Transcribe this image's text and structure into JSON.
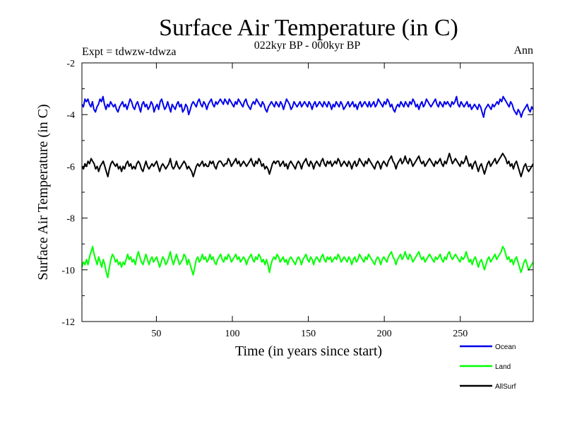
{
  "chart_data": {
    "type": "line",
    "title": "Surface Air Temperature (in C)",
    "subtitle": "022kyr BP - 000kyr BP",
    "left_note": "Expt = tdwzw-tdwza",
    "right_note": "Ann",
    "xlabel": "Time (in years since start)",
    "ylabel": "Surface Air Temperature (in C)",
    "xlim": [
      1,
      298
    ],
    "ylim": [
      -12,
      -2
    ],
    "x_ticks": [
      50,
      100,
      150,
      200,
      250
    ],
    "y_ticks": [
      -2,
      -4,
      -6,
      -8,
      -10,
      -12
    ],
    "grid": false,
    "legend_position": "bottom-right",
    "x": {
      "start": 1,
      "end": 298
    },
    "series": [
      {
        "name": "Ocean",
        "color": "#0000ee",
        "values": [
          -3.6,
          -3.7,
          -3.4,
          -3.5,
          -3.4,
          -3.6,
          -3.7,
          -3.5,
          -3.8,
          -3.9,
          -3.7,
          -3.6,
          -3.4,
          -3.5,
          -3.3,
          -3.6,
          -3.8,
          -3.6,
          -3.7,
          -3.5,
          -3.6,
          -3.7,
          -3.6,
          -3.8,
          -3.9,
          -3.7,
          -3.6,
          -3.5,
          -3.7,
          -3.6,
          -3.8,
          -3.6,
          -3.4,
          -3.5,
          -3.7,
          -3.8,
          -3.6,
          -3.5,
          -3.7,
          -3.9,
          -3.6,
          -3.5,
          -3.7,
          -3.6,
          -3.8,
          -3.7,
          -3.5,
          -3.6,
          -3.9,
          -3.7,
          -3.6,
          -3.8,
          -3.5,
          -3.4,
          -3.6,
          -3.8,
          -3.7,
          -3.5,
          -3.7,
          -3.9,
          -3.6,
          -3.7,
          -3.8,
          -3.6,
          -3.5,
          -3.7,
          -3.6,
          -3.9,
          -3.8,
          -3.6,
          -3.7,
          -4.0,
          -3.8,
          -3.6,
          -3.5,
          -3.6,
          -3.7,
          -3.5,
          -3.4,
          -3.6,
          -3.7,
          -3.5,
          -3.6,
          -3.8,
          -3.6,
          -3.5,
          -3.4,
          -3.6,
          -3.7,
          -3.5,
          -3.6,
          -3.5,
          -3.4,
          -3.5,
          -3.6,
          -3.4,
          -3.5,
          -3.6,
          -3.4,
          -3.5,
          -3.6,
          -3.7,
          -3.5,
          -3.6,
          -3.4,
          -3.5,
          -3.6,
          -3.7,
          -3.5,
          -3.4,
          -3.6,
          -3.7,
          -3.8,
          -3.6,
          -3.5,
          -3.6,
          -3.4,
          -3.5,
          -3.6,
          -3.7,
          -3.5,
          -3.6,
          -3.8,
          -3.9,
          -3.7,
          -3.6,
          -3.5,
          -3.6,
          -3.7,
          -3.5,
          -3.6,
          -3.7,
          -3.5,
          -3.6,
          -3.8,
          -3.6,
          -3.4,
          -3.5,
          -3.6,
          -3.8,
          -3.7,
          -3.5,
          -3.6,
          -3.7,
          -3.6,
          -3.5,
          -3.7,
          -3.6,
          -3.5,
          -3.6,
          -3.7,
          -3.5,
          -3.6,
          -3.8,
          -3.6,
          -3.5,
          -3.7,
          -3.6,
          -3.5,
          -3.6,
          -3.7,
          -3.5,
          -3.6,
          -3.7,
          -3.5,
          -3.6,
          -3.8,
          -3.6,
          -3.7,
          -3.5,
          -3.6,
          -3.7,
          -3.5,
          -3.6,
          -3.8,
          -3.7,
          -3.6,
          -3.5,
          -3.7,
          -3.6,
          -3.5,
          -3.7,
          -3.6,
          -3.8,
          -3.6,
          -3.5,
          -3.7,
          -3.6,
          -3.5,
          -3.6,
          -3.7,
          -3.5,
          -3.7,
          -3.6,
          -3.5,
          -3.7,
          -3.6,
          -3.4,
          -3.5,
          -3.6,
          -3.7,
          -3.5,
          -3.6,
          -3.4,
          -3.5,
          -3.7,
          -3.6,
          -3.8,
          -3.9,
          -3.7,
          -3.6,
          -3.7,
          -3.5,
          -3.6,
          -3.7,
          -3.5,
          -3.6,
          -3.7,
          -3.5,
          -3.6,
          -3.4,
          -3.5,
          -3.7,
          -3.6,
          -3.8,
          -3.6,
          -3.5,
          -3.7,
          -3.6,
          -3.4,
          -3.5,
          -3.6,
          -3.7,
          -3.6,
          -3.5,
          -3.4,
          -3.6,
          -3.7,
          -3.5,
          -3.6,
          -3.7,
          -3.5,
          -3.6,
          -3.5,
          -3.6,
          -3.7,
          -3.5,
          -3.6,
          -3.5,
          -3.3,
          -3.6,
          -3.7,
          -3.5,
          -3.6,
          -3.7,
          -3.6,
          -3.5,
          -3.7,
          -3.6,
          -3.8,
          -3.7,
          -3.6,
          -3.7,
          -3.8,
          -3.6,
          -3.7,
          -3.9,
          -4.1,
          -3.8,
          -3.7,
          -3.6,
          -3.7,
          -3.8,
          -3.6,
          -3.7,
          -3.6,
          -3.5,
          -3.6,
          -3.4,
          -3.5,
          -3.3,
          -3.4,
          -3.5,
          -3.6,
          -3.7,
          -3.5,
          -3.6,
          -3.8,
          -3.9,
          -4.0,
          -3.8,
          -3.9,
          -4.1,
          -3.9,
          -3.8,
          -3.7,
          -3.6,
          -3.8,
          -3.9,
          -3.7,
          -3.8
        ]
      },
      {
        "name": "Land",
        "color": "#00ff00",
        "values": [
          -9.9,
          -9.7,
          -9.8,
          -9.6,
          -9.8,
          -9.5,
          -9.3,
          -9.1,
          -9.4,
          -9.6,
          -9.8,
          -9.5,
          -9.7,
          -9.9,
          -9.6,
          -9.8,
          -10.1,
          -10.3,
          -9.9,
          -9.6,
          -9.4,
          -9.5,
          -9.7,
          -9.6,
          -9.8,
          -9.7,
          -9.9,
          -9.7,
          -9.8,
          -9.6,
          -9.4,
          -9.6,
          -9.5,
          -9.7,
          -9.6,
          -9.8,
          -9.5,
          -9.3,
          -9.5,
          -9.7,
          -9.8,
          -9.6,
          -9.4,
          -9.6,
          -9.8,
          -9.6,
          -9.5,
          -9.7,
          -9.6,
          -9.5,
          -9.7,
          -9.9,
          -9.7,
          -9.5,
          -9.6,
          -9.8,
          -9.7,
          -9.5,
          -9.3,
          -9.6,
          -9.8,
          -9.6,
          -9.4,
          -9.6,
          -9.8,
          -9.7,
          -9.6,
          -9.4,
          -9.5,
          -9.8,
          -9.6,
          -9.8,
          -10.0,
          -10.2,
          -9.9,
          -9.6,
          -9.5,
          -9.7,
          -9.6,
          -9.4,
          -9.6,
          -9.5,
          -9.7,
          -9.6,
          -9.4,
          -9.6,
          -9.5,
          -9.7,
          -9.8,
          -9.6,
          -9.5,
          -9.4,
          -9.6,
          -9.7,
          -9.5,
          -9.6,
          -9.4,
          -9.5,
          -9.7,
          -9.6,
          -9.5,
          -9.4,
          -9.6,
          -9.5,
          -9.7,
          -9.6,
          -9.5,
          -9.6,
          -9.8,
          -9.6,
          -9.5,
          -9.4,
          -9.6,
          -9.7,
          -9.5,
          -9.6,
          -9.4,
          -9.5,
          -9.7,
          -9.6,
          -9.8,
          -9.6,
          -9.8,
          -10.1,
          -9.8,
          -9.6,
          -9.5,
          -9.6,
          -9.4,
          -9.5,
          -9.7,
          -9.6,
          -9.5,
          -9.7,
          -9.6,
          -9.8,
          -9.6,
          -9.5,
          -9.6,
          -9.7,
          -9.8,
          -9.6,
          -9.5,
          -9.6,
          -9.8,
          -9.6,
          -9.5,
          -9.4,
          -9.6,
          -9.7,
          -9.5,
          -9.6,
          -9.8,
          -9.6,
          -9.5,
          -9.6,
          -9.7,
          -9.5,
          -9.4,
          -9.6,
          -9.7,
          -9.5,
          -9.6,
          -9.5,
          -9.7,
          -9.6,
          -9.5,
          -9.6,
          -9.4,
          -9.5,
          -9.7,
          -9.6,
          -9.5,
          -9.6,
          -9.7,
          -9.5,
          -9.6,
          -9.8,
          -9.6,
          -9.5,
          -9.7,
          -9.6,
          -9.4,
          -9.5,
          -9.6,
          -9.7,
          -9.5,
          -9.6,
          -9.4,
          -9.5,
          -9.6,
          -9.7,
          -9.8,
          -9.6,
          -9.5,
          -9.6,
          -9.8,
          -9.6,
          -9.5,
          -9.6,
          -9.7,
          -9.5,
          -9.4,
          -9.3,
          -9.5,
          -9.6,
          -9.8,
          -9.6,
          -9.5,
          -9.4,
          -9.6,
          -9.5,
          -9.3,
          -9.5,
          -9.6,
          -9.4,
          -9.5,
          -9.7,
          -9.6,
          -9.5,
          -9.4,
          -9.3,
          -9.5,
          -9.6,
          -9.5,
          -9.7,
          -9.6,
          -9.5,
          -9.4,
          -9.5,
          -9.6,
          -9.7,
          -9.5,
          -9.6,
          -9.5,
          -9.4,
          -9.6,
          -9.7,
          -9.5,
          -9.6,
          -9.4,
          -9.3,
          -9.5,
          -9.6,
          -9.5,
          -9.4,
          -9.5,
          -9.6,
          -9.7,
          -9.5,
          -9.6,
          -9.5,
          -9.3,
          -9.5,
          -9.7,
          -9.6,
          -9.8,
          -9.6,
          -9.5,
          -9.7,
          -9.9,
          -9.7,
          -9.6,
          -9.8,
          -10.0,
          -9.8,
          -9.6,
          -9.5,
          -9.7,
          -9.6,
          -9.5,
          -9.4,
          -9.6,
          -9.5,
          -9.4,
          -9.3,
          -9.1,
          -9.2,
          -9.4,
          -9.6,
          -9.5,
          -9.7,
          -9.6,
          -9.8,
          -9.6,
          -9.5,
          -9.7,
          -9.9,
          -10.1,
          -9.9,
          -9.7,
          -9.6,
          -9.8,
          -10.0,
          -9.9,
          -9.8,
          -9.7
        ]
      },
      {
        "name": "AllSurf",
        "color": "#000000",
        "values": [
          -6.0,
          -6.1,
          -5.9,
          -6.0,
          -5.8,
          -5.9,
          -5.7,
          -5.8,
          -5.9,
          -6.1,
          -6.0,
          -6.2,
          -6.0,
          -5.9,
          -5.8,
          -6.0,
          -6.2,
          -6.4,
          -6.1,
          -5.9,
          -5.8,
          -5.9,
          -6.0,
          -5.9,
          -6.1,
          -6.0,
          -6.2,
          -6.0,
          -6.1,
          -5.9,
          -5.8,
          -6.0,
          -5.9,
          -6.1,
          -6.0,
          -6.1,
          -5.9,
          -5.8,
          -5.9,
          -6.1,
          -6.2,
          -6.0,
          -5.8,
          -6.0,
          -6.1,
          -6.0,
          -5.9,
          -6.0,
          -5.9,
          -5.8,
          -6.0,
          -6.2,
          -6.0,
          -5.9,
          -6.0,
          -6.1,
          -6.0,
          -5.9,
          -5.7,
          -6.0,
          -6.1,
          -6.0,
          -5.8,
          -6.0,
          -6.1,
          -6.0,
          -5.9,
          -5.8,
          -5.9,
          -6.1,
          -6.0,
          -6.1,
          -6.2,
          -6.4,
          -6.2,
          -6.0,
          -5.9,
          -6.0,
          -5.9,
          -5.8,
          -6.0,
          -5.9,
          -6.0,
          -6.0,
          -5.8,
          -5.9,
          -5.8,
          -6.0,
          -6.1,
          -5.9,
          -5.8,
          -5.8,
          -5.9,
          -6.0,
          -5.9,
          -5.9,
          -5.7,
          -5.8,
          -6.0,
          -5.9,
          -5.8,
          -5.7,
          -5.9,
          -5.8,
          -6.0,
          -5.9,
          -5.8,
          -5.9,
          -6.0,
          -5.9,
          -5.8,
          -5.7,
          -5.9,
          -6.0,
          -5.8,
          -5.9,
          -5.7,
          -5.8,
          -6.0,
          -5.9,
          -6.1,
          -6.0,
          -6.1,
          -6.3,
          -6.1,
          -5.9,
          -5.8,
          -5.9,
          -5.8,
          -5.8,
          -6.0,
          -5.9,
          -5.8,
          -6.0,
          -5.9,
          -6.1,
          -5.9,
          -5.8,
          -5.9,
          -6.0,
          -6.1,
          -5.9,
          -5.8,
          -5.9,
          -6.1,
          -5.9,
          -5.8,
          -5.7,
          -5.9,
          -6.0,
          -5.8,
          -5.9,
          -6.1,
          -5.9,
          -5.8,
          -5.9,
          -6.0,
          -5.8,
          -5.7,
          -5.9,
          -6.0,
          -5.8,
          -5.9,
          -5.8,
          -6.0,
          -5.9,
          -5.8,
          -5.9,
          -5.7,
          -5.8,
          -6.0,
          -5.9,
          -5.8,
          -5.9,
          -6.0,
          -5.8,
          -5.9,
          -6.1,
          -5.9,
          -5.8,
          -6.0,
          -5.9,
          -5.7,
          -5.8,
          -5.9,
          -6.0,
          -5.8,
          -5.9,
          -5.7,
          -5.8,
          -5.9,
          -6.0,
          -6.1,
          -5.9,
          -5.8,
          -5.9,
          -6.1,
          -5.9,
          -5.8,
          -5.9,
          -6.0,
          -5.8,
          -5.7,
          -5.6,
          -5.8,
          -5.9,
          -6.1,
          -5.9,
          -5.8,
          -5.7,
          -5.9,
          -5.8,
          -5.6,
          -5.8,
          -5.9,
          -5.7,
          -5.8,
          -6.0,
          -5.9,
          -5.8,
          -5.7,
          -5.6,
          -5.8,
          -5.9,
          -5.8,
          -6.0,
          -5.9,
          -5.8,
          -5.7,
          -5.8,
          -5.9,
          -6.0,
          -5.8,
          -5.9,
          -5.8,
          -5.7,
          -5.9,
          -6.0,
          -5.8,
          -5.9,
          -5.7,
          -5.5,
          -5.7,
          -5.9,
          -5.8,
          -5.7,
          -5.8,
          -5.9,
          -6.0,
          -5.8,
          -5.9,
          -5.8,
          -5.6,
          -5.8,
          -6.0,
          -5.9,
          -6.1,
          -5.9,
          -5.8,
          -6.0,
          -6.2,
          -6.0,
          -5.9,
          -6.1,
          -6.3,
          -6.1,
          -5.9,
          -5.8,
          -6.0,
          -5.9,
          -5.8,
          -5.7,
          -5.9,
          -5.8,
          -5.7,
          -5.6,
          -5.5,
          -5.6,
          -5.7,
          -5.9,
          -5.8,
          -6.0,
          -5.9,
          -6.1,
          -5.9,
          -5.8,
          -6.0,
          -6.2,
          -6.4,
          -6.2,
          -6.0,
          -5.9,
          -6.1,
          -6.2,
          -6.1,
          -6.0,
          -5.9
        ]
      }
    ]
  }
}
